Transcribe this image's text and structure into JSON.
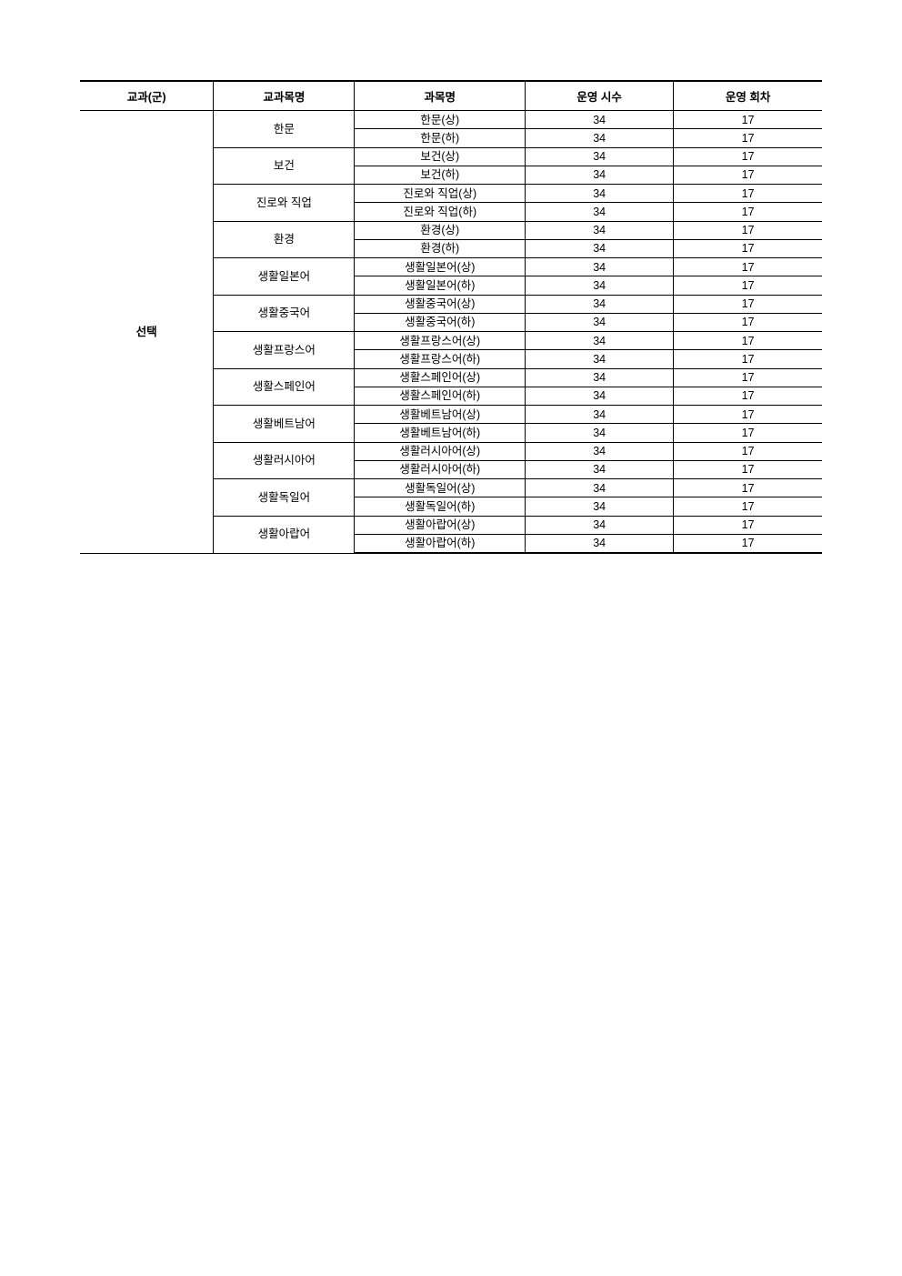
{
  "table": {
    "headers": [
      "교과(군)",
      "교과목명",
      "과목명",
      "운영 시수",
      "운영 회차"
    ],
    "category": "선택",
    "subjects": [
      {
        "name": "한문",
        "rows": [
          {
            "course": "한문(상)",
            "hours": "34",
            "sessions": "17"
          },
          {
            "course": "한문(하)",
            "hours": "34",
            "sessions": "17"
          }
        ]
      },
      {
        "name": "보건",
        "rows": [
          {
            "course": "보건(상)",
            "hours": "34",
            "sessions": "17"
          },
          {
            "course": "보건(하)",
            "hours": "34",
            "sessions": "17"
          }
        ]
      },
      {
        "name": "진로와 직업",
        "rows": [
          {
            "course": "진로와 직업(상)",
            "hours": "34",
            "sessions": "17"
          },
          {
            "course": "진로와 직업(하)",
            "hours": "34",
            "sessions": "17"
          }
        ]
      },
      {
        "name": "환경",
        "rows": [
          {
            "course": "환경(상)",
            "hours": "34",
            "sessions": "17"
          },
          {
            "course": "환경(하)",
            "hours": "34",
            "sessions": "17"
          }
        ]
      },
      {
        "name": "생활일본어",
        "rows": [
          {
            "course": "생활일본어(상)",
            "hours": "34",
            "sessions": "17"
          },
          {
            "course": "생활일본어(하)",
            "hours": "34",
            "sessions": "17"
          }
        ]
      },
      {
        "name": "생활중국어",
        "rows": [
          {
            "course": "생활중국어(상)",
            "hours": "34",
            "sessions": "17"
          },
          {
            "course": "생활중국어(하)",
            "hours": "34",
            "sessions": "17"
          }
        ]
      },
      {
        "name": "생활프랑스어",
        "rows": [
          {
            "course": "생활프랑스어(상)",
            "hours": "34",
            "sessions": "17"
          },
          {
            "course": "생활프랑스어(하)",
            "hours": "34",
            "sessions": "17"
          }
        ]
      },
      {
        "name": "생활스페인어",
        "rows": [
          {
            "course": "생활스페인어(상)",
            "hours": "34",
            "sessions": "17"
          },
          {
            "course": "생활스페인어(하)",
            "hours": "34",
            "sessions": "17"
          }
        ]
      },
      {
        "name": "생활베트남어",
        "rows": [
          {
            "course": "생활베트남어(상)",
            "hours": "34",
            "sessions": "17"
          },
          {
            "course": "생활베트남어(하)",
            "hours": "34",
            "sessions": "17"
          }
        ]
      },
      {
        "name": "생활러시아어",
        "rows": [
          {
            "course": "생활러시아어(상)",
            "hours": "34",
            "sessions": "17"
          },
          {
            "course": "생활러시아어(하)",
            "hours": "34",
            "sessions": "17"
          }
        ]
      },
      {
        "name": "생활독일어",
        "rows": [
          {
            "course": "생활독일어(상)",
            "hours": "34",
            "sessions": "17"
          },
          {
            "course": "생활독일어(하)",
            "hours": "34",
            "sessions": "17"
          }
        ]
      },
      {
        "name": "생활아랍어",
        "rows": [
          {
            "course": "생활아랍어(상)",
            "hours": "34",
            "sessions": "17"
          },
          {
            "course": "생활아랍어(하)",
            "hours": "34",
            "sessions": "17"
          }
        ]
      }
    ]
  }
}
